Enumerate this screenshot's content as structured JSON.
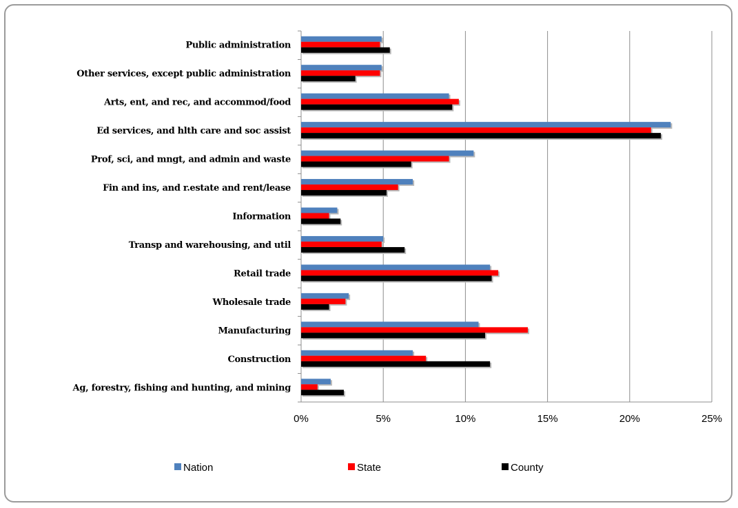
{
  "chart_data": {
    "type": "bar",
    "orientation": "horizontal",
    "categories": [
      "Public administration",
      "Other services, except public administration",
      "Arts, ent, and rec, and accommod/food",
      "Ed services, and hlth care and soc assist",
      "Prof, sci, and mngt, and admin and waste",
      "Fin and ins, and r.estate and rent/lease",
      "Information",
      "Transp and warehousing, and util",
      "Retail trade",
      "Wholesale trade",
      "Manufacturing",
      "Construction",
      "Ag, forestry, fishing and hunting, and mining"
    ],
    "series": [
      {
        "name": "Nation",
        "color": "#4f81bd",
        "values": [
          4.9,
          4.9,
          9.0,
          22.5,
          10.5,
          6.8,
          2.2,
          5.0,
          11.5,
          2.9,
          10.8,
          6.8,
          1.8
        ]
      },
      {
        "name": "State",
        "color": "#ff0000",
        "values": [
          4.8,
          4.8,
          9.6,
          21.3,
          9.0,
          5.9,
          1.7,
          4.9,
          12.0,
          2.7,
          13.8,
          7.6,
          1.0
        ]
      },
      {
        "name": "County",
        "color": "#000000",
        "values": [
          5.4,
          3.3,
          9.2,
          21.9,
          6.7,
          5.2,
          2.4,
          6.3,
          11.6,
          1.7,
          11.2,
          11.5,
          2.6
        ]
      }
    ],
    "x_ticks": [
      "0%",
      "5%",
      "10%",
      "15%",
      "20%",
      "25%"
    ],
    "xlim": [
      0,
      25
    ],
    "grid": "vertical",
    "legend_position": "bottom",
    "title": "",
    "xlabel": "",
    "ylabel": ""
  }
}
